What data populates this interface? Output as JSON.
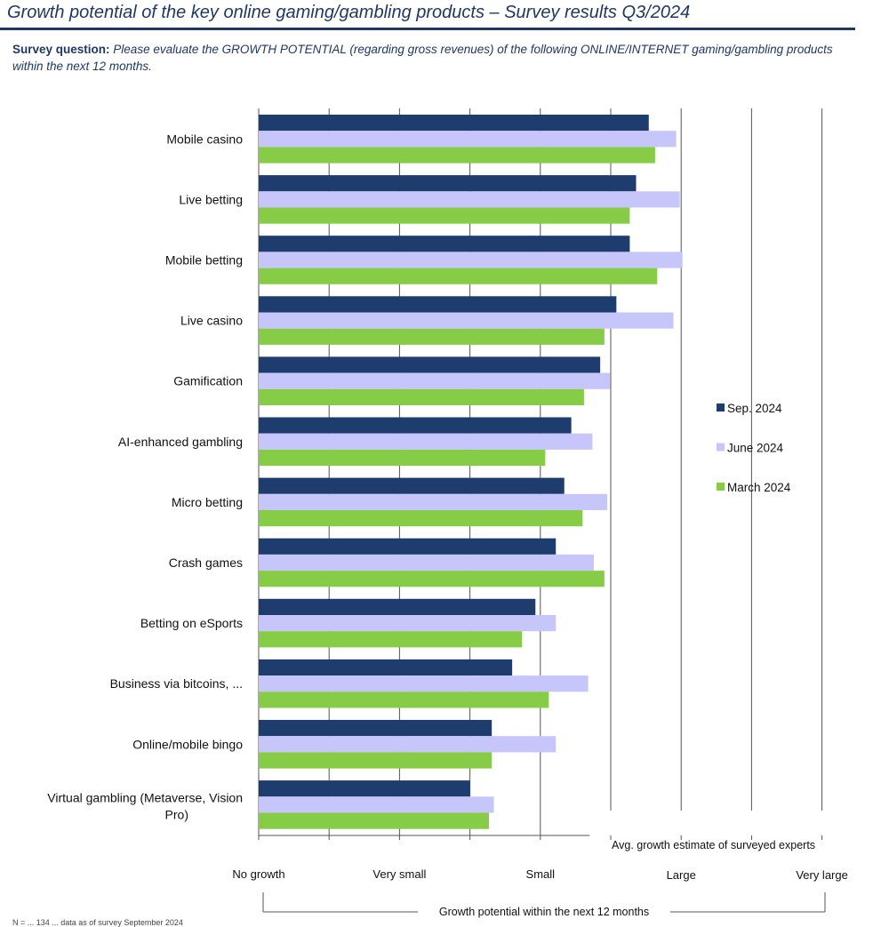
{
  "header": {
    "title": "Growth potential of the key online gaming/gambling products – Survey results Q3/2024"
  },
  "survey": {
    "label": "Survey question:",
    "text": "Please evaluate the GROWTH POTENTIAL (regarding gross revenues) of the following ONLINE/INTERNET gaming/gambling products within the next 12 months."
  },
  "chart_data": {
    "type": "bar",
    "orientation": "horizontal",
    "categories": [
      "Mobile casino",
      "Live betting",
      "Mobile betting",
      "Live casino",
      "Gamification",
      "AI-enhanced gambling",
      "Micro betting",
      "Crash games",
      "Betting on eSports",
      "Business via bitcoins, ...",
      "Online/mobile bingo",
      "Virtual gambling (Metaverse, Vision Pro)"
    ],
    "series": [
      {
        "name": "Sep. 2024",
        "color": "#1f3c6e",
        "values": [
          5.54,
          5.36,
          5.27,
          5.08,
          4.85,
          4.44,
          4.34,
          4.22,
          3.93,
          3.6,
          3.31,
          3.0
        ]
      },
      {
        "name": "June 2024",
        "color": "#c6c6fa",
        "values": [
          5.93,
          5.98,
          6.02,
          5.89,
          4.99,
          4.74,
          4.95,
          4.76,
          4.22,
          4.68,
          4.22,
          3.34
        ]
      },
      {
        "name": "March 2024",
        "color": "#87cc47",
        "values": [
          5.63,
          5.27,
          5.66,
          4.91,
          4.62,
          4.07,
          4.6,
          4.91,
          3.74,
          4.12,
          3.31,
          3.27
        ]
      }
    ],
    "xlim": [
      0,
      8
    ],
    "xticks": [
      0,
      1,
      2,
      3,
      4,
      5,
      6,
      7,
      8
    ],
    "scale_labels": [
      {
        "label": "No growth",
        "value": 0
      },
      {
        "label": "Very small",
        "value": 2
      },
      {
        "label": "Small",
        "value": 4
      },
      {
        "label": "Large",
        "value": 6
      },
      {
        "label": "Very large",
        "value": 8
      }
    ],
    "xlabel": "Growth potential within the next  12 months",
    "annotation": "Avg. growth estimate of surveyed experts",
    "legend_position": "right"
  },
  "footnote": "N = ... 134 ... data as of survey September 2024"
}
